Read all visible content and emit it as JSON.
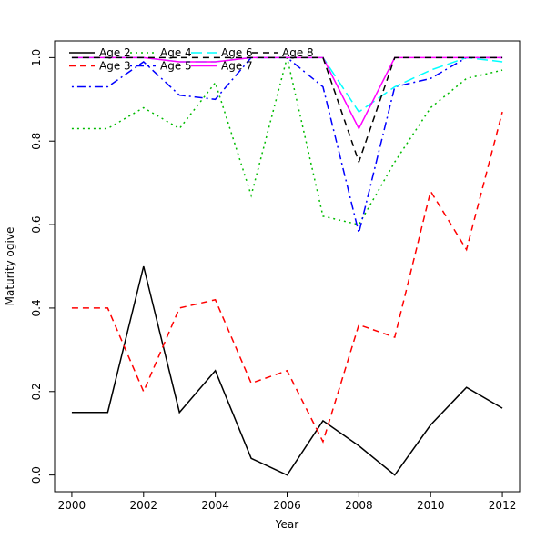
{
  "chart_data": {
    "type": "line",
    "title": "",
    "xlabel": "Year",
    "ylabel": "Maturity ogive",
    "xlim": [
      2000,
      2012
    ],
    "ylim": [
      0.0,
      1.0
    ],
    "grid": false,
    "legend_position": "top-left",
    "legend_columns": 4,
    "x": [
      2000,
      2001,
      2002,
      2003,
      2004,
      2005,
      2006,
      2007,
      2008,
      2009,
      2010,
      2011,
      2012
    ],
    "x_ticks": [
      2000,
      2002,
      2004,
      2006,
      2008,
      2010,
      2012
    ],
    "x_tick_labels": [
      "2000",
      "2002",
      "2004",
      "2006",
      "2008",
      "2010",
      "2012"
    ],
    "y_ticks": [
      0.0,
      0.2,
      0.4,
      0.6,
      0.8,
      1.0
    ],
    "y_tick_labels": [
      "0.0",
      "0.2",
      "0.4",
      "0.6",
      "0.8",
      "1.0"
    ],
    "series": [
      {
        "name": "Age 2",
        "color": "#000000",
        "linestyle": "solid",
        "dash": "",
        "values": [
          0.15,
          0.15,
          0.5,
          0.15,
          0.25,
          0.04,
          0.0,
          0.13,
          0.07,
          0.0,
          0.12,
          0.21,
          0.16
        ]
      },
      {
        "name": "Age 3",
        "color": "#ff0000",
        "linestyle": "dashed",
        "dash": "7,5",
        "values": [
          0.4,
          0.4,
          0.2,
          0.4,
          0.42,
          0.22,
          0.25,
          0.08,
          0.36,
          0.33,
          0.68,
          0.54,
          0.87
        ]
      },
      {
        "name": "Age 4",
        "color": "#00bb00",
        "linestyle": "dotted",
        "dash": "2,4",
        "values": [
          0.83,
          0.83,
          0.88,
          0.83,
          0.94,
          0.67,
          1.0,
          0.62,
          0.6,
          0.75,
          0.88,
          0.95,
          0.97
        ]
      },
      {
        "name": "Age 5",
        "color": "#0000ff",
        "linestyle": "dashdot",
        "dash": "2,4,9,4",
        "values": [
          0.93,
          0.93,
          0.99,
          0.91,
          0.9,
          1.0,
          1.0,
          0.93,
          0.58,
          0.93,
          0.95,
          1.0,
          1.0
        ]
      },
      {
        "name": "Age 6",
        "color": "#00ffff",
        "linestyle": "longdash",
        "dash": "12,5",
        "values": [
          1.0,
          1.0,
          1.0,
          0.99,
          0.99,
          1.0,
          1.0,
          1.0,
          0.87,
          0.93,
          0.97,
          1.0,
          0.99
        ]
      },
      {
        "name": "Age 7",
        "color": "#ff00ff",
        "linestyle": "solid",
        "dash": "",
        "values": [
          1.0,
          1.0,
          1.0,
          0.99,
          0.99,
          1.0,
          1.0,
          1.0,
          0.83,
          1.0,
          1.0,
          1.0,
          1.0
        ]
      },
      {
        "name": "Age 8",
        "color": "#000000",
        "linestyle": "dashed",
        "dash": "7,5",
        "values": [
          1.0,
          1.0,
          1.0,
          1.0,
          1.0,
          1.0,
          1.0,
          1.0,
          0.75,
          1.0,
          1.0,
          1.0,
          1.0
        ]
      }
    ]
  }
}
